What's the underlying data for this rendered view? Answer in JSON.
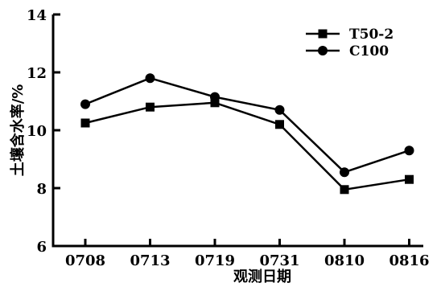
{
  "chart_data": {
    "type": "line",
    "title": "",
    "xlabel": "观测日期",
    "ylabel": "土壤含水率/%",
    "categories": [
      "0708",
      "0713",
      "0719",
      "0731",
      "0810",
      "0816"
    ],
    "ylim": [
      6,
      14
    ],
    "yticks": [
      "6",
      "8",
      "10",
      "12",
      "14"
    ],
    "grid": false,
    "legend_position": "top-right",
    "series": [
      {
        "name": "T50-2",
        "marker": "square",
        "values": [
          10.25,
          10.8,
          10.95,
          10.2,
          7.95,
          8.3
        ]
      },
      {
        "name": "C100",
        "marker": "circle",
        "values": [
          10.9,
          11.8,
          11.15,
          10.7,
          8.55,
          9.3
        ]
      }
    ]
  }
}
